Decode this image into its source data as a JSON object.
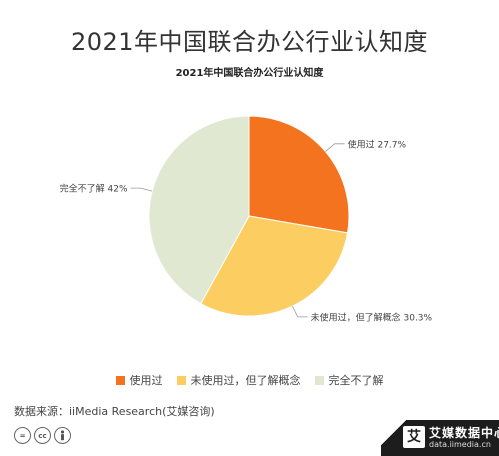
{
  "header": {
    "title": "2021年中国联合办公行业认知度"
  },
  "chart_data": {
    "type": "pie",
    "title": "2021年中国联合办公行业认知度",
    "slices": [
      {
        "label": "使用过",
        "value": 27.7,
        "display": "使用过 27.7%",
        "color": "#f4731f"
      },
      {
        "label": "未使用过，但了解概念",
        "value": 30.3,
        "display": "未使用过，但了解概念 30.3%",
        "color": "#fcce62"
      },
      {
        "label": "完全不了解",
        "value": 42,
        "display": "完全不了解 42%",
        "color": "#e0e8d1"
      }
    ],
    "start_angle_deg": 0,
    "direction": "clockwise",
    "legend_position": "bottom"
  },
  "legend": [
    {
      "label": "使用过",
      "color": "#f4731f"
    },
    {
      "label": "未使用过，但了解概念",
      "color": "#fcce62"
    },
    {
      "label": "完全不了解",
      "color": "#e0e8d1"
    }
  ],
  "footer": {
    "source": "数据来源：iiMedia Research(艾媒咨询)",
    "brand_logo": "艾",
    "brand_name": "艾媒数据中心",
    "brand_url": "data.iimedia.cn",
    "license_icons": [
      "equals-icon",
      "cc-icon",
      "person-icon"
    ]
  }
}
